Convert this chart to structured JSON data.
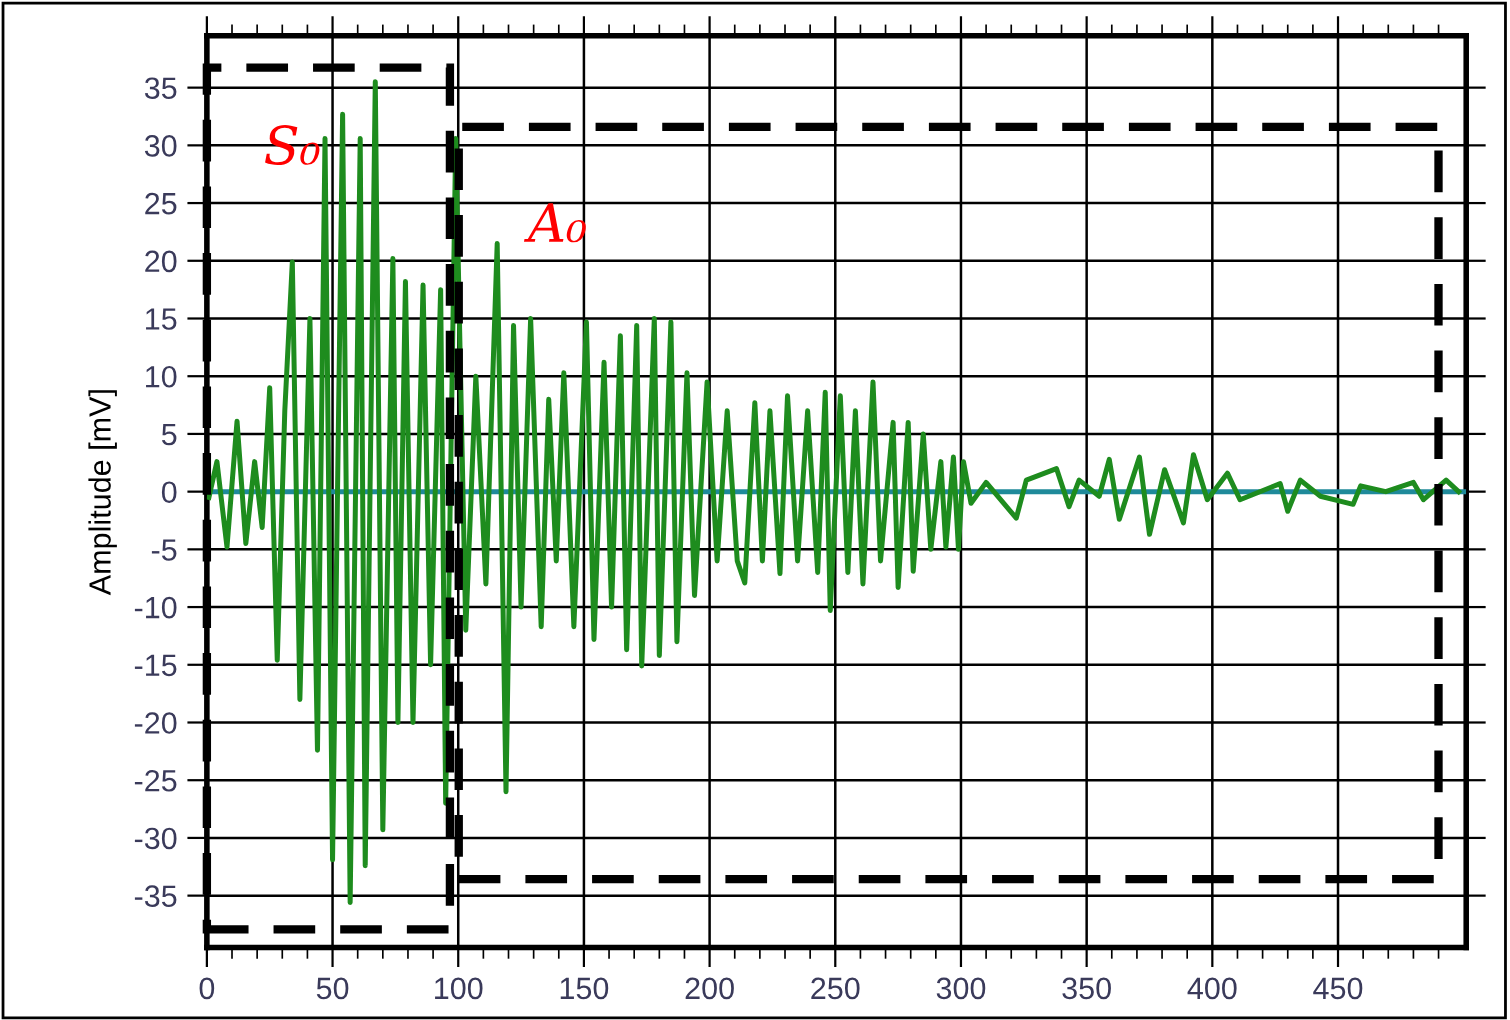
{
  "chart_data": {
    "type": "line",
    "ylabel": "Amplitude [mV]",
    "xlim": [
      0,
      501
    ],
    "ylim": [
      -39.5,
      39.5
    ],
    "xticks": [
      0,
      {
        "value": 10,
        "label": null
      },
      {
        "value": 20,
        "label": null
      },
      {
        "value": 30,
        "label": null
      },
      {
        "value": 40,
        "label": null
      },
      50,
      {
        "value": 60,
        "label": null
      },
      {
        "value": 70,
        "label": null
      },
      {
        "value": 80,
        "label": null
      },
      {
        "value": 90,
        "label": null
      },
      100,
      {
        "value": 110,
        "label": null
      },
      {
        "value": 120,
        "label": null
      },
      {
        "value": 130,
        "label": null
      },
      {
        "value": 140,
        "label": null
      },
      150,
      {
        "value": 160,
        "label": null
      },
      {
        "value": 170,
        "label": null
      },
      {
        "value": 180,
        "label": null
      },
      {
        "value": 190,
        "label": null
      },
      200,
      {
        "value": 210,
        "label": null
      },
      {
        "value": 220,
        "label": null
      },
      {
        "value": 230,
        "label": null
      },
      {
        "value": 240,
        "label": null
      },
      250,
      {
        "value": 260,
        "label": null
      },
      {
        "value": 270,
        "label": null
      },
      {
        "value": 280,
        "label": null
      },
      {
        "value": 290,
        "label": null
      },
      300,
      {
        "value": 310,
        "label": null
      },
      {
        "value": 320,
        "label": null
      },
      {
        "value": 330,
        "label": null
      },
      {
        "value": 340,
        "label": null
      },
      350,
      {
        "value": 360,
        "label": null
      },
      {
        "value": 370,
        "label": null
      },
      {
        "value": 380,
        "label": null
      },
      {
        "value": 390,
        "label": null
      },
      400,
      {
        "value": 410,
        "label": null
      },
      {
        "value": 420,
        "label": null
      },
      {
        "value": 430,
        "label": null
      },
      {
        "value": 440,
        "label": null
      },
      450,
      {
        "value": 460,
        "label": null
      },
      {
        "value": 470,
        "label": null
      },
      {
        "value": 480,
        "label": null
      },
      {
        "value": 490,
        "label": null
      }
    ],
    "yticks": [
      -35,
      -30,
      -25,
      -20,
      -15,
      -10,
      -5,
      0,
      5,
      10,
      15,
      20,
      25,
      30,
      35
    ],
    "grid": true,
    "legend": false,
    "series": [
      {
        "color": "#1f8a9a",
        "x": [
          0,
          500
        ],
        "values": [
          0,
          0
        ]
      },
      {
        "color": "#1e8c1e",
        "x": [
          0.8,
          4,
          8,
          12,
          15.5,
          19,
          22,
          25,
          28,
          31,
          34,
          37,
          41,
          44,
          47,
          50,
          54,
          57,
          61,
          63,
          67,
          70,
          74,
          76,
          79,
          82,
          86,
          89,
          93,
          95,
          99,
          103,
          107,
          111,
          115.5,
          119,
          122,
          125,
          128.8,
          133,
          136,
          139,
          142,
          146,
          151,
          154,
          158,
          161,
          164.5,
          167,
          171,
          173,
          178,
          180,
          184.6,
          187,
          191,
          194,
          199,
          203,
          207,
          211,
          214,
          218,
          221,
          224,
          228,
          231,
          235,
          239,
          243,
          246,
          248,
          252,
          255,
          258,
          261,
          265,
          268,
          273,
          275,
          279,
          281,
          285,
          288,
          292,
          294,
          297,
          299,
          301,
          304,
          310,
          322,
          326,
          338,
          343,
          347,
          355,
          359,
          363,
          371,
          375,
          381,
          388.5,
          392.5,
          398,
          406,
          411,
          427,
          430,
          435,
          443,
          456,
          459,
          469,
          480,
          484,
          493,
          498
        ],
        "values": [
          -0.5,
          2.6,
          -4.8,
          6.1,
          -4.5,
          2.6,
          -3.1,
          9,
          -14.6,
          7,
          19.9,
          -18,
          15,
          -22.4,
          30.6,
          -31.9,
          32.7,
          -35.6,
          30.6,
          -32.4,
          35.5,
          -29.3,
          20.2,
          -20,
          18.2,
          -20,
          17.9,
          -15,
          17.5,
          -27,
          30.6,
          -12,
          10,
          -8,
          21.5,
          -26,
          14.4,
          -10,
          15,
          -11.7,
          8,
          -6,
          10.3,
          -11.7,
          14.7,
          -12.8,
          11.2,
          -10,
          13.5,
          -13.7,
          14.4,
          -15.1,
          15,
          -14.2,
          14.7,
          -13,
          10.3,
          -9,
          9.5,
          -6,
          7,
          -6,
          -7.9,
          7.7,
          -6,
          7,
          -7.1,
          8.3,
          -6,
          7,
          -7,
          8.6,
          -10.3,
          8.3,
          -7,
          7,
          -8,
          9.5,
          -6,
          6,
          -8.3,
          6,
          -6.9,
          5,
          -5,
          2.6,
          -4.8,
          3,
          -5,
          2.6,
          -1,
          0.8,
          -2.3,
          1,
          2,
          -1.3,
          1,
          -0.4,
          2.8,
          -2.4,
          3,
          -3.7,
          1.9,
          -2.7,
          3.2,
          -0.7,
          1.6,
          -0.7,
          0.7,
          -1.7,
          1,
          -0.4,
          -1.1,
          0.5,
          0,
          0.8,
          -0.7,
          1,
          0
        ]
      }
    ],
    "annotations": [
      "S₀",
      "A₀"
    ]
  }
}
